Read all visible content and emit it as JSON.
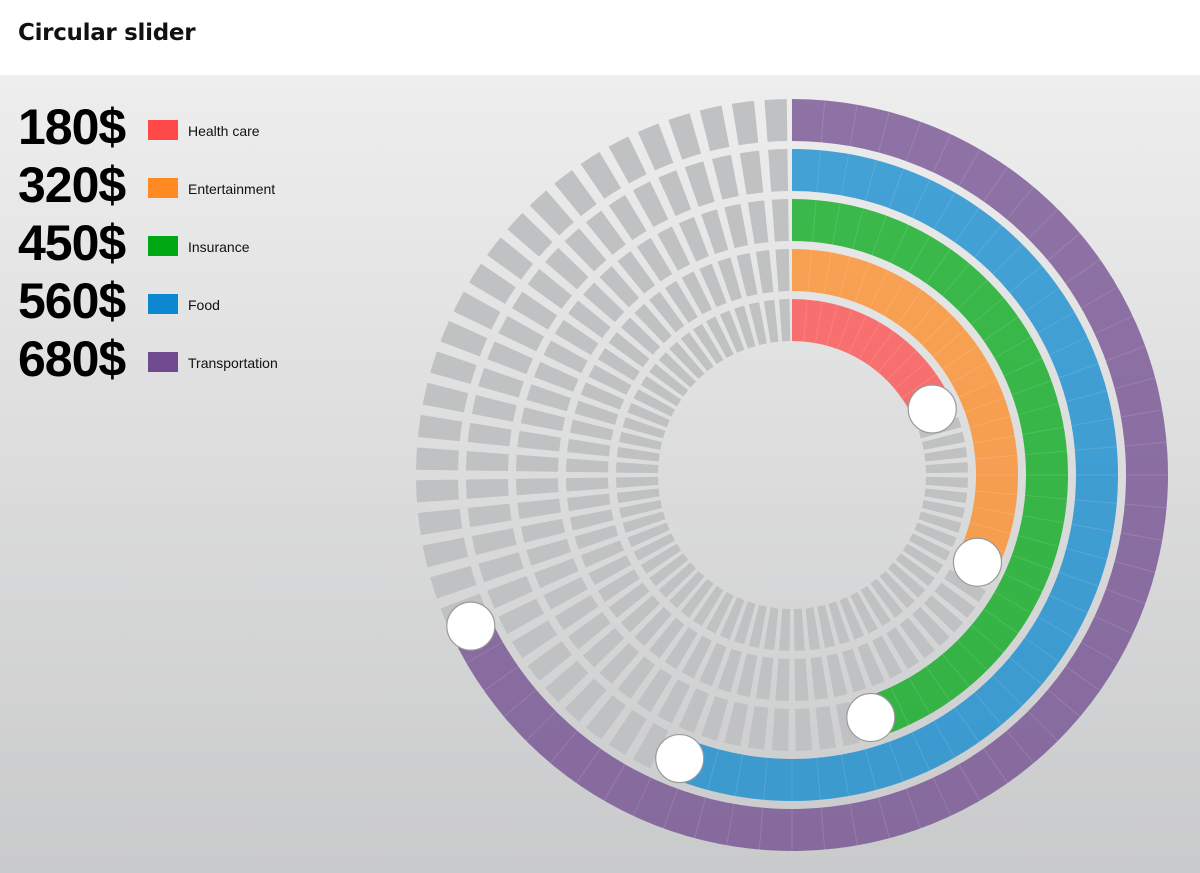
{
  "header": {
    "title": "Circular slider"
  },
  "sliders": [
    {
      "label": "Health care",
      "display": "180$",
      "value": 180,
      "max": 1000,
      "color": "#ff4848"
    },
    {
      "label": "Entertainment",
      "display": "320$",
      "value": 320,
      "max": 1000,
      "color": "#ff8a22"
    },
    {
      "label": "Insurance",
      "display": "450$",
      "value": 450,
      "max": 1000,
      "color": "#00a814"
    },
    {
      "label": "Food",
      "display": "560$",
      "value": 560,
      "max": 1000,
      "color": "#0b88cf"
    },
    {
      "label": "Transportation",
      "display": "680$",
      "value": 680,
      "max": 1000,
      "color": "#6f4a8e"
    }
  ],
  "colors": {
    "track": "#c0c1c2",
    "knob": "#ffffff"
  }
}
